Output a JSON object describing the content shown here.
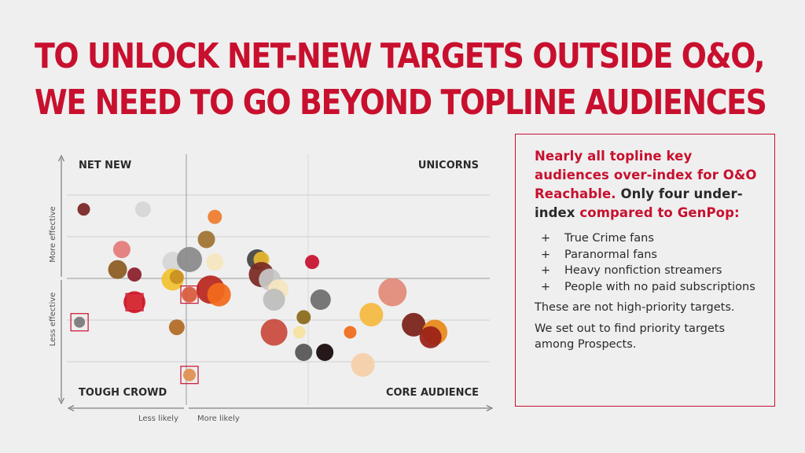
{
  "headline": {
    "line1": "TO UNLOCK NET-NEW TARGETS OUTSIDE O&O,",
    "line2": "WE NEED TO GO BEYOND TOPLINE AUDIENCES"
  },
  "panel": {
    "intro_segments": [
      {
        "text": "Nearly all topline key audiences over-index for O&O Reachable.",
        "color": "red"
      },
      {
        "text": "Only four under-index",
        "color": "dark"
      },
      {
        "text": "compared to GenPop:",
        "color": "red"
      }
    ],
    "bullets": [
      "True Crime fans",
      "Paranormal fans",
      "Heavy nonfiction streamers",
      "People with no paid subscriptions"
    ],
    "note1": "These are not high-priority targets.",
    "note2": "We set out to find priority targets among Prospects."
  },
  "chart_data": {
    "type": "scatter",
    "quadrant_labels": {
      "top_left": "NET NEW",
      "top_right": "UNICORNS",
      "bottom_left": "TOUGH CROWD",
      "bottom_right": "CORE AUDIENCE"
    },
    "x_axis": {
      "left_label": "Less likely",
      "right_label": "More likely"
    },
    "y_axis": {
      "top_label": "More effective",
      "bottom_label": "Less effective"
    },
    "xlim": [
      0,
      1
    ],
    "ylim": [
      0,
      1
    ],
    "grid": true,
    "points": [
      {
        "x": 0.04,
        "y": 0.78,
        "r": 8,
        "color": "#7a2424"
      },
      {
        "x": 0.18,
        "y": 0.78,
        "r": 10,
        "color": "#d6d6d6"
      },
      {
        "x": 0.35,
        "y": 0.75,
        "r": 9,
        "color": "#ef7d2e"
      },
      {
        "x": 0.33,
        "y": 0.66,
        "r": 11,
        "color": "#a07230"
      },
      {
        "x": 0.13,
        "y": 0.62,
        "r": 11,
        "color": "#e47a7a"
      },
      {
        "x": 0.25,
        "y": 0.57,
        "r": 13,
        "color": "#d6d6d6"
      },
      {
        "x": 0.29,
        "y": 0.58,
        "r": 16,
        "color": "#8a8a8a"
      },
      {
        "x": 0.35,
        "y": 0.57,
        "r": 11,
        "color": "#f6e6c0"
      },
      {
        "x": 0.45,
        "y": 0.58,
        "r": 13,
        "color": "#444444"
      },
      {
        "x": 0.46,
        "y": 0.58,
        "r": 10,
        "color": "#e8b830"
      },
      {
        "x": 0.12,
        "y": 0.54,
        "r": 12,
        "color": "#8c5a20"
      },
      {
        "x": 0.16,
        "y": 0.52,
        "r": 9,
        "color": "#8a1f2b"
      },
      {
        "x": 0.25,
        "y": 0.5,
        "r": 14,
        "color": "#f2c230"
      },
      {
        "x": 0.26,
        "y": 0.51,
        "r": 9,
        "color": "#c99020"
      },
      {
        "x": 0.46,
        "y": 0.52,
        "r": 16,
        "color": "#7a2a22"
      },
      {
        "x": 0.48,
        "y": 0.5,
        "r": 14,
        "color": "#c8c8c8"
      },
      {
        "x": 0.5,
        "y": 0.46,
        "r": 13,
        "color": "#f6e6c0"
      },
      {
        "x": 0.58,
        "y": 0.57,
        "r": 9,
        "color": "#c8102e"
      },
      {
        "x": 0.34,
        "y": 0.46,
        "r": 18,
        "color": "#b8281e"
      },
      {
        "x": 0.36,
        "y": 0.44,
        "r": 15,
        "color": "#f26a1b"
      },
      {
        "x": 0.29,
        "y": 0.44,
        "r": 10,
        "color": "#d85a3c"
      },
      {
        "x": 0.16,
        "y": 0.41,
        "r": 14,
        "color": "#d4202a"
      },
      {
        "x": 0.49,
        "y": 0.42,
        "r": 14,
        "color": "#bdbdbd"
      },
      {
        "x": 0.6,
        "y": 0.42,
        "r": 13,
        "color": "#6e6e6e"
      },
      {
        "x": 0.77,
        "y": 0.45,
        "r": 18,
        "color": "#e28a78"
      },
      {
        "x": 0.72,
        "y": 0.36,
        "r": 15,
        "color": "#f5b940"
      },
      {
        "x": 0.56,
        "y": 0.35,
        "r": 9,
        "color": "#8a6a1a"
      },
      {
        "x": 0.03,
        "y": 0.33,
        "r": 7,
        "color": "#7a7a7a"
      },
      {
        "x": 0.26,
        "y": 0.31,
        "r": 10,
        "color": "#b06a22"
      },
      {
        "x": 0.49,
        "y": 0.29,
        "r": 17,
        "color": "#c84a3c"
      },
      {
        "x": 0.55,
        "y": 0.29,
        "r": 8,
        "color": "#f7e2a0"
      },
      {
        "x": 0.67,
        "y": 0.29,
        "r": 8,
        "color": "#f26a1b"
      },
      {
        "x": 0.82,
        "y": 0.32,
        "r": 15,
        "color": "#7a2018"
      },
      {
        "x": 0.87,
        "y": 0.29,
        "r": 16,
        "color": "#e8891a"
      },
      {
        "x": 0.86,
        "y": 0.27,
        "r": 14,
        "color": "#9a2018"
      },
      {
        "x": 0.56,
        "y": 0.21,
        "r": 11,
        "color": "#555555"
      },
      {
        "x": 0.61,
        "y": 0.21,
        "r": 11,
        "color": "#150808"
      },
      {
        "x": 0.7,
        "y": 0.16,
        "r": 15,
        "color": "#f5d0a8"
      },
      {
        "x": 0.29,
        "y": 0.12,
        "r": 8,
        "color": "#e09050"
      }
    ],
    "highlighted_points": [
      {
        "x": 0.03,
        "y": 0.33
      },
      {
        "x": 0.16,
        "y": 0.41
      },
      {
        "x": 0.29,
        "y": 0.44
      },
      {
        "x": 0.29,
        "y": 0.12
      }
    ]
  }
}
